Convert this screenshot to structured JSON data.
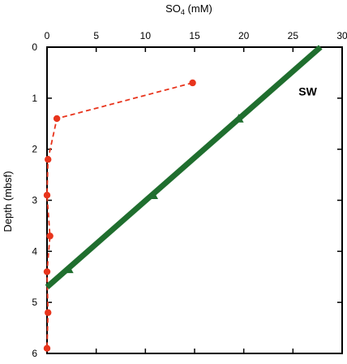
{
  "chart_data": {
    "type": "scatter",
    "title": "",
    "xlabel_main": "SO",
    "xlabel_sub": "4",
    "xlabel_unit": " (mM)",
    "ylabel": "Depth (mbsf)",
    "xlim": [
      0,
      30
    ],
    "ylim": [
      0,
      6
    ],
    "y_inverted": true,
    "x_axis_position": "top",
    "grid": false,
    "x_ticks": [
      0,
      5,
      10,
      15,
      20,
      25,
      30
    ],
    "y_ticks": [
      0,
      1,
      2,
      3,
      4,
      5,
      6
    ],
    "series": [
      {
        "style": "dashed line with circle markers",
        "color": "#e8341c",
        "points": [
          {
            "x": 14.8,
            "y": 0.7
          },
          {
            "x": 1.0,
            "y": 1.4
          },
          {
            "x": 0.1,
            "y": 2.2
          },
          {
            "x": 0.0,
            "y": 2.9
          },
          {
            "x": 0.3,
            "y": 3.7
          },
          {
            "x": 0.0,
            "y": 4.4
          },
          {
            "x": 0.1,
            "y": 5.2
          },
          {
            "x": 0.0,
            "y": 5.9
          }
        ]
      },
      {
        "name": "SW",
        "style": "thick solid line with triangle markers",
        "color": "#1f6e2e",
        "line": [
          {
            "x": 27.8,
            "y": 0.0
          },
          {
            "x": 0.0,
            "y": 4.7
          }
        ],
        "points": [
          {
            "x": 19.5,
            "y": 1.4
          },
          {
            "x": 10.8,
            "y": 2.9
          },
          {
            "x": 2.2,
            "y": 4.35
          }
        ]
      }
    ],
    "annotations": [
      {
        "text": "SW",
        "x": 26.5,
        "y": 0.95
      }
    ]
  }
}
